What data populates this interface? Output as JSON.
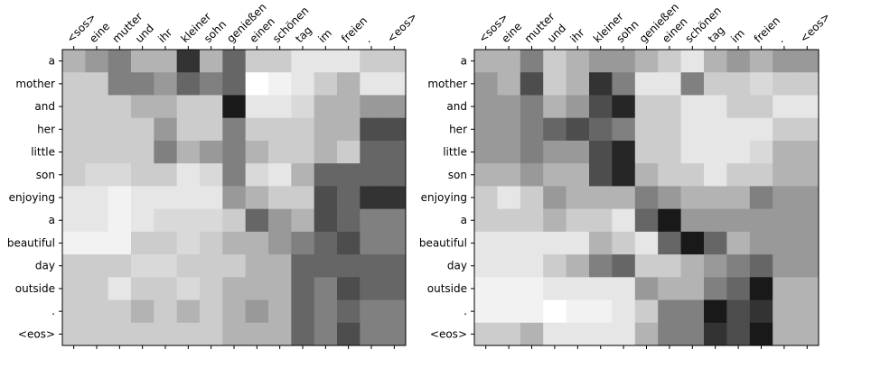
{
  "chart_data": [
    {
      "type": "heatmap",
      "title": "",
      "xlabel": "",
      "ylabel": "",
      "x_tick_labels": [
        "<sos>",
        "eine",
        "mutter",
        "und",
        "ihr",
        "kleiner",
        "sohn",
        "genießen",
        "einen",
        "schönen",
        "tag",
        "im",
        "freien",
        ".",
        "<eos>"
      ],
      "y_tick_labels": [
        "a",
        "mother",
        "and",
        "her",
        "little",
        "son",
        "enjoying",
        "a",
        "beautiful",
        "day",
        "outside",
        ".",
        "<eos>"
      ],
      "colormap": "gray_r",
      "value_range": [
        0,
        1
      ],
      "values": [
        [
          0.3,
          0.4,
          0.5,
          0.3,
          0.3,
          0.8,
          0.3,
          0.6,
          0.2,
          0.2,
          0.1,
          0.1,
          0.1,
          0.2,
          0.2
        ],
        [
          0.2,
          0.2,
          0.5,
          0.5,
          0.4,
          0.6,
          0.5,
          0.6,
          0.0,
          0.05,
          0.1,
          0.2,
          0.3,
          0.1,
          0.1
        ],
        [
          0.2,
          0.2,
          0.2,
          0.3,
          0.3,
          0.2,
          0.2,
          0.9,
          0.1,
          0.1,
          0.15,
          0.3,
          0.3,
          0.4,
          0.4
        ],
        [
          0.2,
          0.2,
          0.2,
          0.2,
          0.4,
          0.2,
          0.2,
          0.5,
          0.2,
          0.2,
          0.2,
          0.3,
          0.3,
          0.7,
          0.7
        ],
        [
          0.2,
          0.2,
          0.2,
          0.2,
          0.5,
          0.3,
          0.4,
          0.5,
          0.3,
          0.2,
          0.2,
          0.3,
          0.2,
          0.6,
          0.6
        ],
        [
          0.2,
          0.15,
          0.15,
          0.2,
          0.2,
          0.1,
          0.15,
          0.5,
          0.15,
          0.1,
          0.3,
          0.6,
          0.6,
          0.6,
          0.6
        ],
        [
          0.1,
          0.1,
          0.05,
          0.1,
          0.1,
          0.1,
          0.1,
          0.4,
          0.3,
          0.2,
          0.2,
          0.7,
          0.6,
          0.8,
          0.8
        ],
        [
          0.1,
          0.1,
          0.05,
          0.1,
          0.15,
          0.15,
          0.15,
          0.2,
          0.6,
          0.4,
          0.3,
          0.7,
          0.6,
          0.5,
          0.5
        ],
        [
          0.05,
          0.05,
          0.05,
          0.2,
          0.2,
          0.15,
          0.2,
          0.3,
          0.3,
          0.4,
          0.5,
          0.6,
          0.7,
          0.5,
          0.5
        ],
        [
          0.2,
          0.2,
          0.2,
          0.15,
          0.15,
          0.2,
          0.2,
          0.2,
          0.3,
          0.3,
          0.6,
          0.6,
          0.6,
          0.6,
          0.6
        ],
        [
          0.2,
          0.2,
          0.1,
          0.2,
          0.2,
          0.15,
          0.2,
          0.3,
          0.3,
          0.3,
          0.6,
          0.5,
          0.7,
          0.6,
          0.6
        ],
        [
          0.2,
          0.2,
          0.2,
          0.3,
          0.2,
          0.3,
          0.2,
          0.3,
          0.4,
          0.3,
          0.6,
          0.5,
          0.6,
          0.5,
          0.5
        ],
        [
          0.2,
          0.2,
          0.2,
          0.2,
          0.2,
          0.2,
          0.2,
          0.3,
          0.3,
          0.3,
          0.6,
          0.5,
          0.7,
          0.5,
          0.5
        ]
      ]
    },
    {
      "type": "heatmap",
      "title": "",
      "xlabel": "",
      "ylabel": "",
      "x_tick_labels": [
        "<sos>",
        "eine",
        "mutter",
        "und",
        "ihr",
        "kleiner",
        "sohn",
        "genießen",
        "einen",
        "schönen",
        "tag",
        "im",
        "freien",
        ".",
        "<eos>"
      ],
      "y_tick_labels": [
        "a",
        "mother",
        "and",
        "her",
        "little",
        "son",
        "enjoying",
        "a",
        "beautiful",
        "day",
        "outside",
        ".",
        "<eos>"
      ],
      "colormap": "gray_r",
      "value_range": [
        0,
        1
      ],
      "values": [
        [
          0.3,
          0.3,
          0.5,
          0.2,
          0.3,
          0.4,
          0.4,
          0.3,
          0.2,
          0.1,
          0.3,
          0.4,
          0.3,
          0.4,
          0.4
        ],
        [
          0.4,
          0.3,
          0.7,
          0.2,
          0.3,
          0.8,
          0.5,
          0.1,
          0.1,
          0.5,
          0.2,
          0.2,
          0.15,
          0.2,
          0.2
        ],
        [
          0.4,
          0.4,
          0.5,
          0.3,
          0.4,
          0.7,
          0.85,
          0.2,
          0.2,
          0.1,
          0.1,
          0.2,
          0.2,
          0.1,
          0.1
        ],
        [
          0.4,
          0.4,
          0.5,
          0.6,
          0.7,
          0.6,
          0.5,
          0.2,
          0.2,
          0.1,
          0.1,
          0.1,
          0.1,
          0.2,
          0.2
        ],
        [
          0.4,
          0.4,
          0.5,
          0.4,
          0.4,
          0.7,
          0.85,
          0.2,
          0.2,
          0.1,
          0.1,
          0.1,
          0.15,
          0.3,
          0.3
        ],
        [
          0.3,
          0.3,
          0.4,
          0.3,
          0.3,
          0.7,
          0.85,
          0.3,
          0.2,
          0.2,
          0.1,
          0.2,
          0.2,
          0.3,
          0.3
        ],
        [
          0.2,
          0.1,
          0.2,
          0.4,
          0.3,
          0.3,
          0.3,
          0.5,
          0.4,
          0.3,
          0.3,
          0.3,
          0.5,
          0.4,
          0.4
        ],
        [
          0.2,
          0.2,
          0.2,
          0.3,
          0.2,
          0.2,
          0.1,
          0.6,
          0.9,
          0.4,
          0.4,
          0.4,
          0.4,
          0.4,
          0.4
        ],
        [
          0.1,
          0.1,
          0.1,
          0.1,
          0.1,
          0.3,
          0.2,
          0.1,
          0.6,
          0.9,
          0.6,
          0.3,
          0.4,
          0.4,
          0.4
        ],
        [
          0.1,
          0.1,
          0.1,
          0.2,
          0.3,
          0.5,
          0.6,
          0.2,
          0.2,
          0.3,
          0.4,
          0.5,
          0.6,
          0.4,
          0.4
        ],
        [
          0.05,
          0.05,
          0.05,
          0.1,
          0.1,
          0.1,
          0.1,
          0.4,
          0.3,
          0.3,
          0.5,
          0.6,
          0.9,
          0.3,
          0.3
        ],
        [
          0.05,
          0.05,
          0.05,
          0.0,
          0.05,
          0.05,
          0.1,
          0.2,
          0.5,
          0.5,
          0.9,
          0.7,
          0.8,
          0.3,
          0.3
        ],
        [
          0.2,
          0.2,
          0.3,
          0.1,
          0.1,
          0.1,
          0.1,
          0.3,
          0.5,
          0.5,
          0.8,
          0.7,
          0.9,
          0.3,
          0.3
        ]
      ]
    }
  ]
}
